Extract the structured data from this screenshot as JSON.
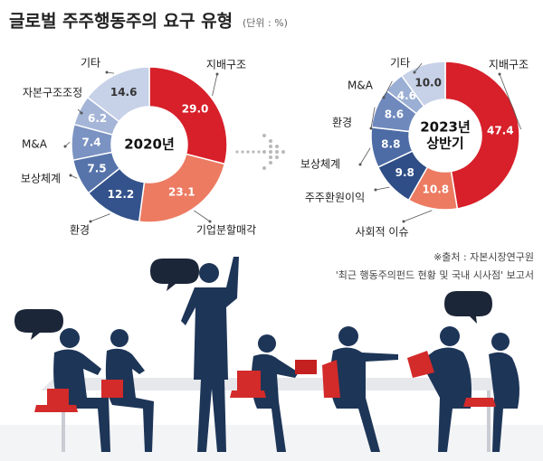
{
  "header": {
    "title": "글로벌 주주행동주의 요구 유형",
    "unit": "(단위 : %)"
  },
  "chart_data": [
    {
      "type": "pie",
      "center_label": [
        "2020년"
      ],
      "categories": [
        "지배구조",
        "기업분할매각",
        "환경",
        "보상체계",
        "M&A",
        "자본구조조정",
        "기타"
      ],
      "values": [
        29.0,
        23.1,
        12.2,
        7.5,
        7.4,
        6.2,
        14.6
      ],
      "value_labels": [
        "29.0",
        "23.1",
        "12.2",
        "7.5",
        "7.4",
        "6.2",
        "14.6"
      ],
      "colors": [
        "#d7202a",
        "#ec7b62",
        "#34538c",
        "#5673aa",
        "#7b93c2",
        "#a4b5d7",
        "#c7d1e7"
      ]
    },
    {
      "type": "pie",
      "center_label": [
        "2023년",
        "상반기"
      ],
      "categories": [
        "지배구조",
        "사회적 이슈",
        "주주환원이익",
        "보상체계",
        "환경",
        "M&A",
        "기타"
      ],
      "values": [
        47.4,
        10.8,
        9.8,
        8.8,
        8.6,
        4.6,
        10.0
      ],
      "value_labels": [
        "47.4",
        "10.8",
        "9.8",
        "8.8",
        "8.6",
        "4.6",
        "10.0"
      ],
      "colors": [
        "#d7202a",
        "#ec7b62",
        "#2f4d86",
        "#4d6ba5",
        "#6f89bd",
        "#9bafd4",
        "#c7d1e7"
      ]
    }
  ],
  "source": [
    "※출처 : 자본시장연구원",
    "'최근 행동주의펀드 현황 및 국내 시사점' 보고서"
  ]
}
